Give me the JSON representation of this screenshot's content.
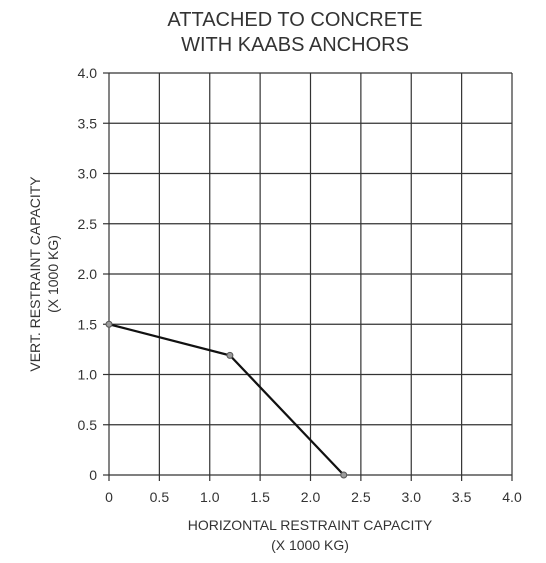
{
  "chart_data": {
    "type": "line",
    "title_lines": [
      "ATTACHED TO CONCRETE",
      "WITH KAABS ANCHORS"
    ],
    "xlabel_lines": [
      "HORIZONTAL RESTRAINT CAPACITY",
      "(X 1000 KG)"
    ],
    "ylabel_lines": [
      "VERT. RESTRAINT CAPACITY",
      "(X 1000 KG)"
    ],
    "xlim": [
      0,
      4.0
    ],
    "ylim": [
      0,
      4.0
    ],
    "x_ticks": [
      "0",
      "0.5",
      "1.0",
      "1.5",
      "2.0",
      "2.5",
      "3.0",
      "3.5",
      "4.0"
    ],
    "y_ticks": [
      "0",
      "0.5",
      "1.0",
      "1.5",
      "2.0",
      "2.5",
      "3.0",
      "3.5",
      "4.0"
    ],
    "grid": true,
    "series": [
      {
        "x": [
          0,
          1.2,
          2.33
        ],
        "y": [
          1.5,
          1.19,
          0
        ],
        "color": "#111111"
      }
    ]
  }
}
